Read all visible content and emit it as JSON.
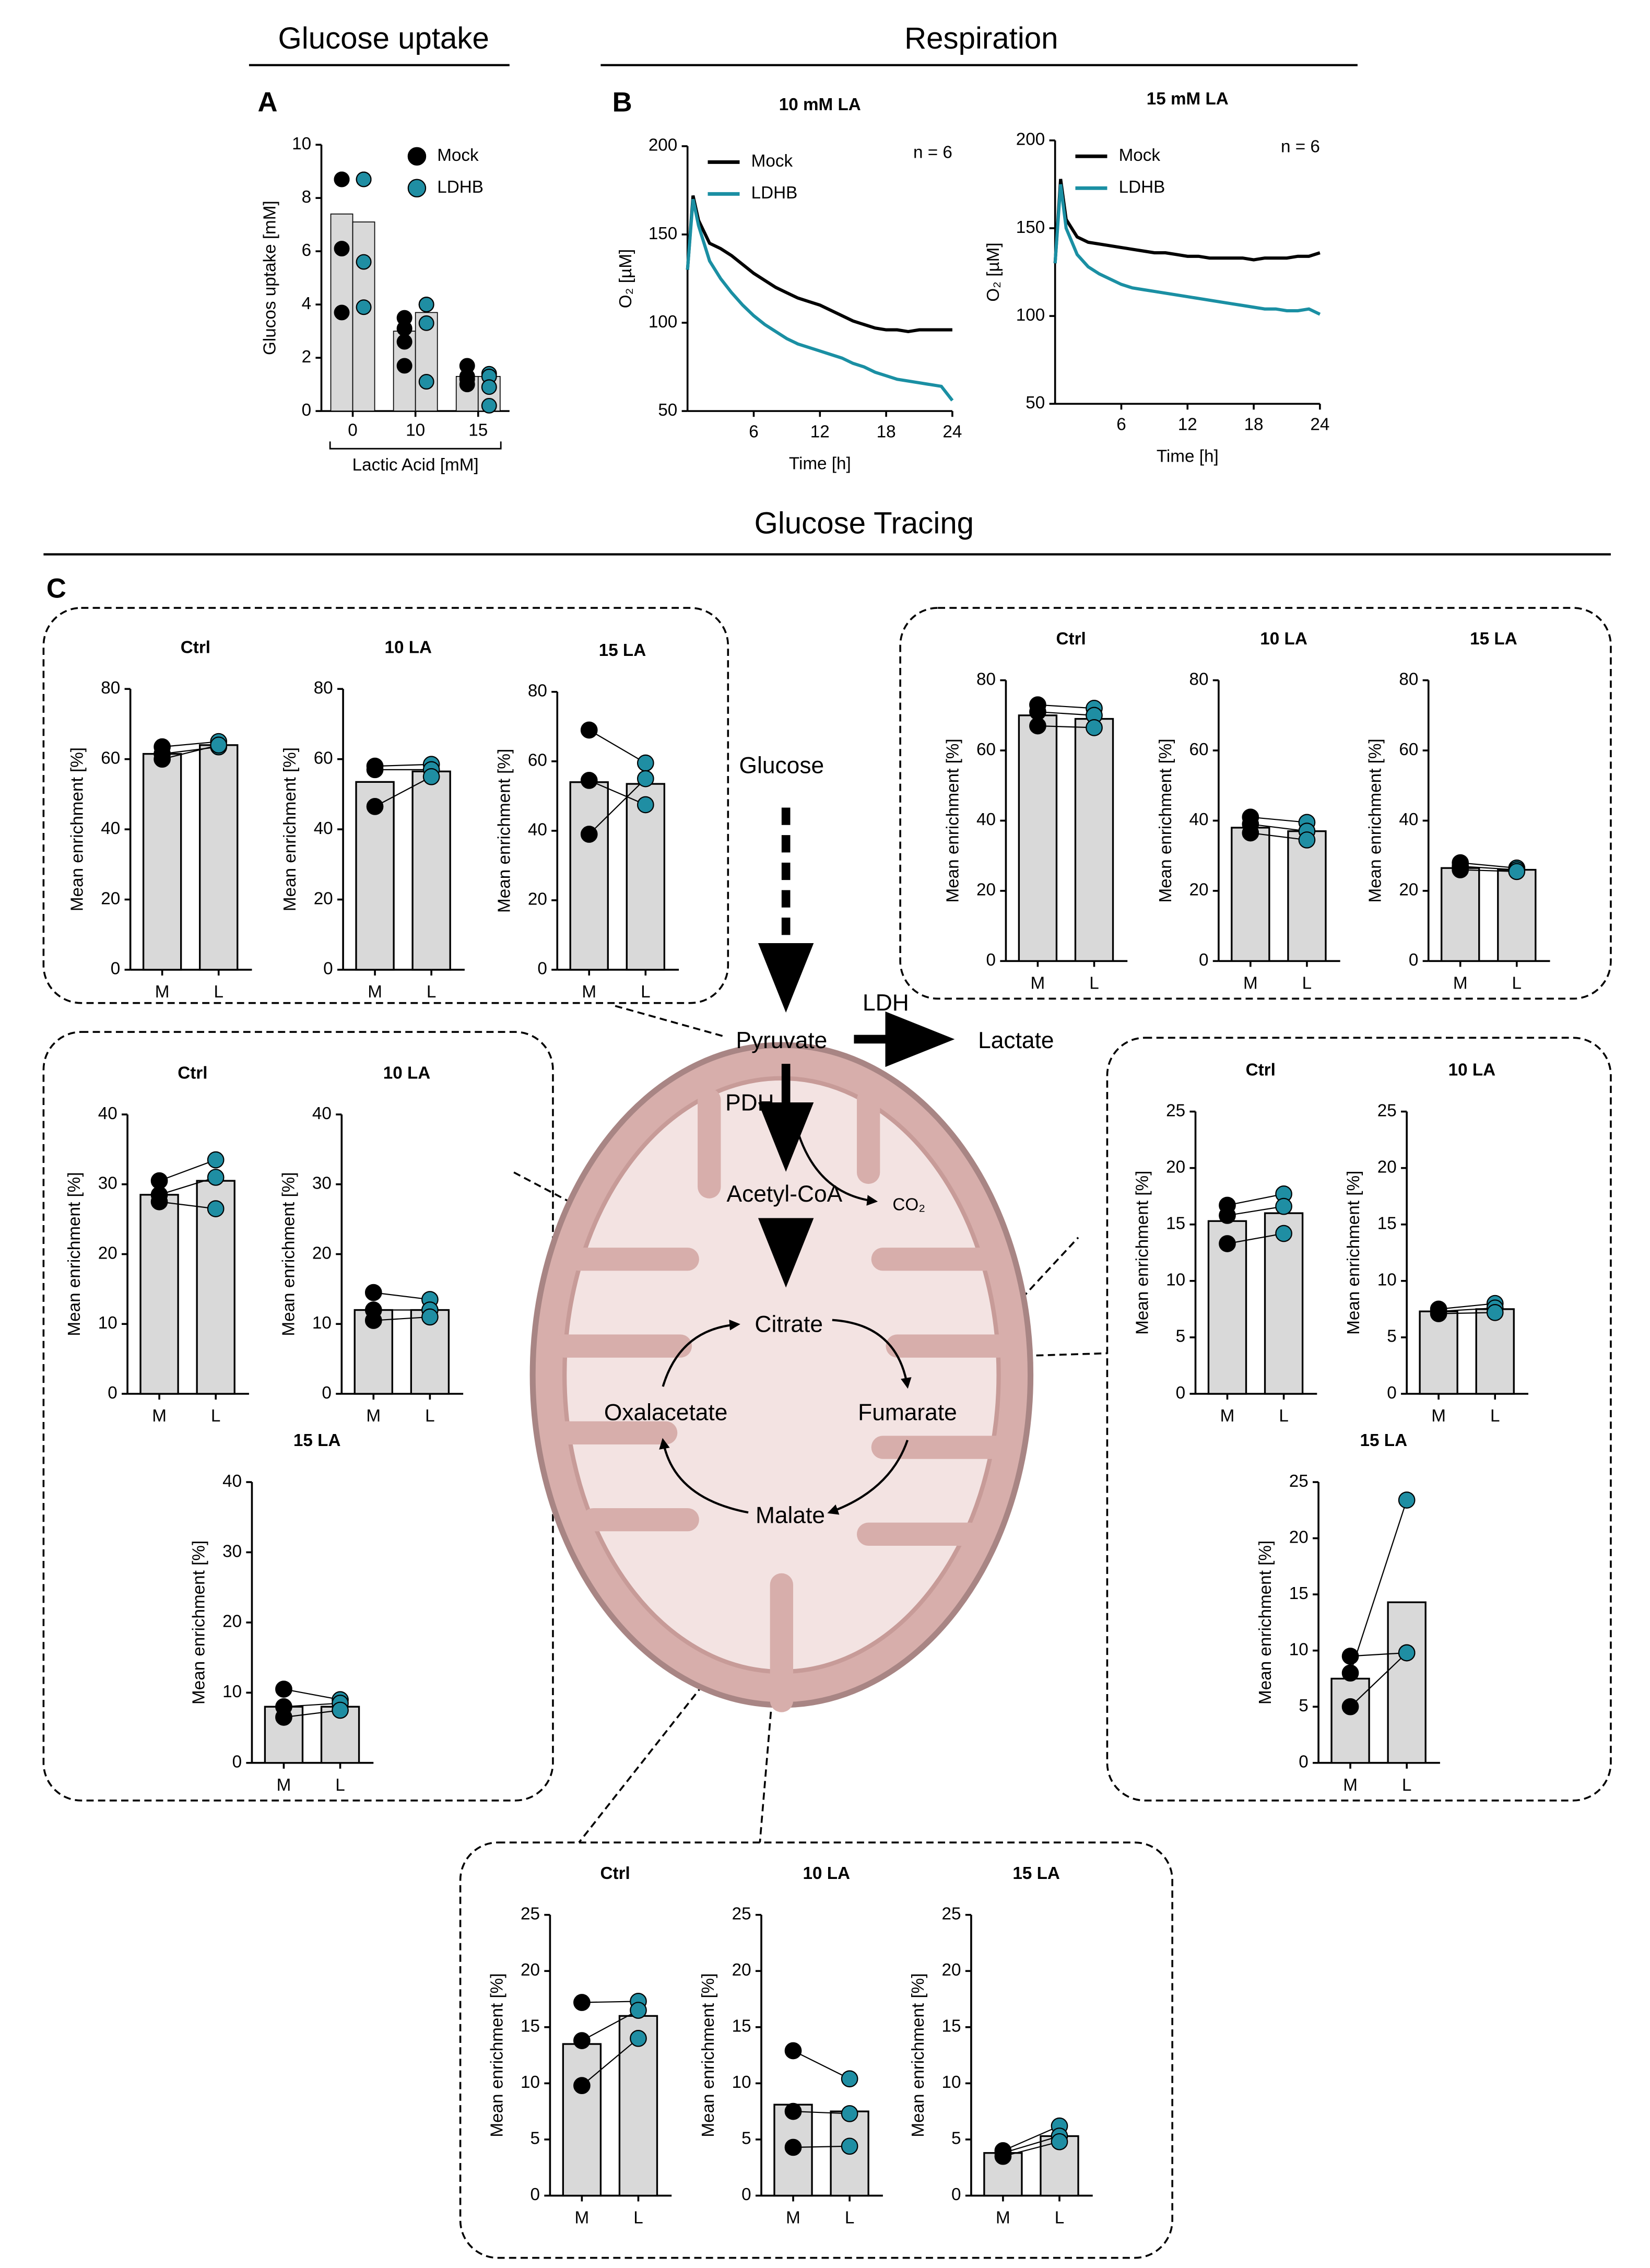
{
  "labels": {
    "glucose_uptake_header": "Glucose uptake",
    "respiration_header": "Respiration",
    "panel_a": "A",
    "panel_b": "B",
    "panel_c": "C",
    "tracing_header": "Glucose Tracing"
  },
  "diagram": {
    "glucose": "Glucose",
    "pyruvate": "Pyruvate",
    "ldh": "LDH",
    "lactate": "Lactate",
    "pdh": "PDH",
    "co2": "CO₂",
    "acetyl_coa": "Acetyl-CoA",
    "citrate": "Citrate",
    "fumarate": "Fumarate",
    "malate": "Malate",
    "oxalacetate": "Oxalacetate"
  },
  "chart_data": [
    {
      "type": "bar",
      "ylabel": "Glucos uptake [mM]",
      "xlabel": "Lactic Acid [mM]",
      "categories": [
        "0",
        "10",
        "15"
      ],
      "ylim": [
        0,
        10
      ],
      "yticks": [
        0,
        2,
        4,
        6,
        8,
        10
      ],
      "bar_color": "#d9d9d9",
      "series": [
        {
          "name": "Mock",
          "color": "#000000",
          "values": [
            7.4,
            3.0,
            1.3
          ],
          "points": [
            [
              8.7,
              8.7,
              6.1,
              3.7
            ],
            [
              3.5,
              3.1,
              2.6,
              1.7
            ],
            [
              1.7,
              1.3,
              1.0,
              1.2
            ]
          ]
        },
        {
          "name": "LDHB",
          "color": "#1f8ea3",
          "values": [
            7.1,
            3.7,
            1.3
          ],
          "points": [
            [
              8.7,
              8.7,
              5.6,
              3.9
            ],
            [
              4.0,
              4.0,
              3.3,
              1.1
            ],
            [
              1.4,
              1.3,
              0.9,
              0.2
            ]
          ]
        }
      ]
    },
    {
      "type": "line",
      "title": "10 mM LA",
      "xlabel": "Time [h]",
      "ylabel": "O₂ [µM]",
      "annotation": "n = 6",
      "x": [
        0,
        0.5,
        1,
        2,
        3,
        4,
        5,
        6,
        7,
        8,
        9,
        10,
        11,
        12,
        13,
        14,
        15,
        16,
        17,
        18,
        19,
        20,
        21,
        22,
        23,
        24
      ],
      "xlim": [
        0,
        24
      ],
      "xticks": [
        6,
        12,
        18,
        24
      ],
      "ylim": [
        50,
        200
      ],
      "yticks": [
        50,
        100,
        150,
        200
      ],
      "series": [
        {
          "name": "Mock",
          "color": "#000000",
          "values": [
            130,
            172,
            158,
            145,
            142,
            138,
            133,
            128,
            124,
            120,
            117,
            114,
            112,
            110,
            107,
            104,
            101,
            99,
            97,
            96,
            96,
            95,
            96,
            96,
            96,
            96
          ]
        },
        {
          "name": "LDHB",
          "color": "#1a8fa3",
          "values": [
            130,
            170,
            155,
            135,
            125,
            117,
            110,
            104,
            99,
            95,
            91,
            88,
            86,
            84,
            82,
            80,
            77,
            75,
            72,
            70,
            68,
            67,
            66,
            65,
            64,
            56
          ]
        }
      ]
    },
    {
      "type": "line",
      "title": "15 mM LA",
      "xlabel": "Time [h]",
      "ylabel": "O₂ [µM]",
      "annotation": "n = 6",
      "x": [
        0,
        0.5,
        1,
        2,
        3,
        4,
        5,
        6,
        7,
        8,
        9,
        10,
        11,
        12,
        13,
        14,
        15,
        16,
        17,
        18,
        19,
        20,
        21,
        22,
        23,
        24
      ],
      "xlim": [
        0,
        24
      ],
      "xticks": [
        6,
        12,
        18,
        24
      ],
      "ylim": [
        50,
        200
      ],
      "yticks": [
        50,
        100,
        150,
        200
      ],
      "series": [
        {
          "name": "Mock",
          "color": "#000000",
          "values": [
            130,
            178,
            155,
            145,
            142,
            141,
            140,
            139,
            138,
            137,
            136,
            136,
            135,
            134,
            134,
            133,
            133,
            133,
            133,
            132,
            133,
            133,
            133,
            134,
            134,
            136
          ]
        },
        {
          "name": "LDHB",
          "color": "#1a8fa3",
          "values": [
            130,
            175,
            150,
            135,
            128,
            124,
            121,
            118,
            116,
            115,
            114,
            113,
            112,
            111,
            110,
            109,
            108,
            107,
            106,
            105,
            104,
            104,
            103,
            103,
            104,
            101
          ]
        }
      ]
    },
    {
      "type": "paired",
      "title": "Ctrl",
      "ylabel": "Mean enrichment [%]",
      "categories": [
        "M",
        "L"
      ],
      "values": [
        61.5,
        64
      ],
      "points": [
        [
          63.5,
          61.5,
          60
        ],
        [
          65,
          63.5,
          64
        ]
      ],
      "ylim": [
        0,
        80
      ],
      "yticks": [
        0,
        20,
        40,
        60,
        80
      ],
      "bar_color": "#d9d9d9",
      "point_colors": [
        "#000000",
        "#1f8ea3"
      ]
    },
    {
      "type": "paired",
      "title": "10 LA",
      "ylabel": "Mean enrichment [%]",
      "categories": [
        "M",
        "L"
      ],
      "values": [
        53.5,
        56.5
      ],
      "points": [
        [
          58,
          57,
          46.5
        ],
        [
          58.5,
          57,
          55
        ]
      ],
      "ylim": [
        0,
        80
      ],
      "yticks": [
        0,
        20,
        40,
        60,
        80
      ],
      "bar_color": "#d9d9d9",
      "point_colors": [
        "#000000",
        "#1f8ea3"
      ]
    },
    {
      "type": "paired",
      "title": "15 LA",
      "ylabel": "Mean enrichment [%]",
      "categories": [
        "M",
        "L"
      ],
      "values": [
        54,
        53.5
      ],
      "points": [
        [
          69,
          54.5,
          39
        ],
        [
          59.5,
          47.5,
          55
        ]
      ],
      "ylim": [
        0,
        80
      ],
      "yticks": [
        0,
        20,
        40,
        60,
        80
      ],
      "bar_color": "#d9d9d9",
      "point_colors": [
        "#000000",
        "#1f8ea3"
      ]
    },
    {
      "type": "paired",
      "title": "Ctrl",
      "ylabel": "Mean enrichment [%]",
      "categories": [
        "M",
        "L"
      ],
      "values": [
        70,
        69
      ],
      "points": [
        [
          73,
          71,
          67
        ],
        [
          72,
          70,
          66.5
        ]
      ],
      "ylim": [
        0,
        80
      ],
      "yticks": [
        0,
        20,
        40,
        60,
        80
      ],
      "bar_color": "#d9d9d9",
      "point_colors": [
        "#000000",
        "#1f8ea3"
      ]
    },
    {
      "type": "paired",
      "title": "10 LA",
      "ylabel": "Mean enrichment [%]",
      "categories": [
        "M",
        "L"
      ],
      "values": [
        38,
        37
      ],
      "points": [
        [
          41,
          39,
          36.5
        ],
        [
          39.5,
          37,
          34.5
        ]
      ],
      "ylim": [
        0,
        80
      ],
      "yticks": [
        0,
        20,
        40,
        60,
        80
      ],
      "bar_color": "#d9d9d9",
      "point_colors": [
        "#000000",
        "#1f8ea3"
      ]
    },
    {
      "type": "paired",
      "title": "15 LA",
      "ylabel": "Mean enrichment [%]",
      "categories": [
        "M",
        "L"
      ],
      "values": [
        26.5,
        26
      ],
      "points": [
        [
          28,
          27,
          26
        ],
        [
          26.5,
          26,
          25.5
        ]
      ],
      "ylim": [
        0,
        80
      ],
      "yticks": [
        0,
        20,
        40,
        60,
        80
      ],
      "bar_color": "#d9d9d9",
      "point_colors": [
        "#000000",
        "#1f8ea3"
      ]
    },
    {
      "type": "paired",
      "title": "Ctrl",
      "ylabel": "Mean enrichment [%]",
      "categories": [
        "M",
        "L"
      ],
      "values": [
        28.5,
        30.5
      ],
      "points": [
        [
          30.5,
          28.5,
          27.5
        ],
        [
          33.5,
          31,
          26.5
        ]
      ],
      "ylim": [
        0,
        40
      ],
      "yticks": [
        0,
        10,
        20,
        30,
        40
      ],
      "bar_color": "#d9d9d9",
      "point_colors": [
        "#000000",
        "#1f8ea3"
      ]
    },
    {
      "type": "paired",
      "title": "10 LA",
      "ylabel": "Mean enrichment [%]",
      "categories": [
        "M",
        "L"
      ],
      "values": [
        12,
        12
      ],
      "points": [
        [
          14.5,
          12,
          10.5
        ],
        [
          13.5,
          12,
          11
        ]
      ],
      "ylim": [
        0,
        40
      ],
      "yticks": [
        0,
        10,
        20,
        30,
        40
      ],
      "bar_color": "#d9d9d9",
      "point_colors": [
        "#000000",
        "#1f8ea3"
      ]
    },
    {
      "type": "paired",
      "title": "15 LA",
      "ylabel": "Mean enrichment [%]",
      "categories": [
        "M",
        "L"
      ],
      "values": [
        8,
        8
      ],
      "points": [
        [
          10.5,
          8,
          6.5
        ],
        [
          9,
          8.5,
          7.5
        ]
      ],
      "ylim": [
        0,
        40
      ],
      "yticks": [
        0,
        10,
        20,
        30,
        40
      ],
      "bar_color": "#d9d9d9",
      "point_colors": [
        "#000000",
        "#1f8ea3"
      ]
    },
    {
      "type": "paired",
      "title": "Ctrl",
      "ylabel": "Mean enrichment [%]",
      "categories": [
        "M",
        "L"
      ],
      "values": [
        15.3,
        16
      ],
      "points": [
        [
          16.7,
          15.8,
          13.3
        ],
        [
          17.7,
          16.6,
          14.2
        ]
      ],
      "ylim": [
        0,
        25
      ],
      "yticks": [
        0,
        5,
        10,
        15,
        20,
        25
      ],
      "bar_color": "#d9d9d9",
      "point_colors": [
        "#000000",
        "#1f8ea3"
      ]
    },
    {
      "type": "paired",
      "title": "10 LA",
      "ylabel": "Mean enrichment [%]",
      "categories": [
        "M",
        "L"
      ],
      "values": [
        7.3,
        7.5
      ],
      "points": [
        [
          7.5,
          7.3,
          7.1
        ],
        [
          8,
          7.6,
          7.2
        ]
      ],
      "ylim": [
        0,
        25
      ],
      "yticks": [
        0,
        5,
        10,
        15,
        20,
        25
      ],
      "bar_color": "#d9d9d9",
      "point_colors": [
        "#000000",
        "#1f8ea3"
      ]
    },
    {
      "type": "paired",
      "title": "15 LA",
      "ylabel": "Mean enrichment [%]",
      "categories": [
        "M",
        "L"
      ],
      "values": [
        7.5,
        14.3
      ],
      "points": [
        [
          9.5,
          8,
          5
        ],
        [
          9.8,
          23.4,
          9.8
        ]
      ],
      "ylim": [
        0,
        25
      ],
      "yticks": [
        0,
        5,
        10,
        15,
        20,
        25
      ],
      "bar_color": "#d9d9d9",
      "point_colors": [
        "#000000",
        "#1f8ea3"
      ]
    },
    {
      "type": "paired",
      "title": "Ctrl",
      "ylabel": "Mean enrichment [%]",
      "categories": [
        "M",
        "L"
      ],
      "values": [
        13.5,
        16
      ],
      "points": [
        [
          17.2,
          13.8,
          9.8
        ],
        [
          17.3,
          16.5,
          14
        ]
      ],
      "ylim": [
        0,
        25
      ],
      "yticks": [
        0,
        5,
        10,
        15,
        20,
        25
      ],
      "bar_color": "#d9d9d9",
      "point_colors": [
        "#000000",
        "#1f8ea3"
      ]
    },
    {
      "type": "paired",
      "title": "10 LA",
      "ylabel": "Mean enrichment [%]",
      "categories": [
        "M",
        "L"
      ],
      "values": [
        8.1,
        7.5
      ],
      "points": [
        [
          12.9,
          7.5,
          4.3
        ],
        [
          10.4,
          7.3,
          4.4
        ]
      ],
      "ylim": [
        0,
        25
      ],
      "yticks": [
        0,
        5,
        10,
        15,
        20,
        25
      ],
      "bar_color": "#d9d9d9",
      "point_colors": [
        "#000000",
        "#1f8ea3"
      ]
    },
    {
      "type": "paired",
      "title": "15 LA",
      "ylabel": "Mean enrichment [%]",
      "categories": [
        "M",
        "L"
      ],
      "values": [
        3.8,
        5.3
      ],
      "points": [
        [
          4.0,
          3.8,
          3.5
        ],
        [
          6.2,
          5.3,
          4.8
        ]
      ],
      "ylim": [
        0,
        25
      ],
      "yticks": [
        0,
        5,
        10,
        15,
        20,
        25
      ],
      "bar_color": "#d9d9d9",
      "point_colors": [
        "#000000",
        "#1f8ea3"
      ]
    }
  ]
}
